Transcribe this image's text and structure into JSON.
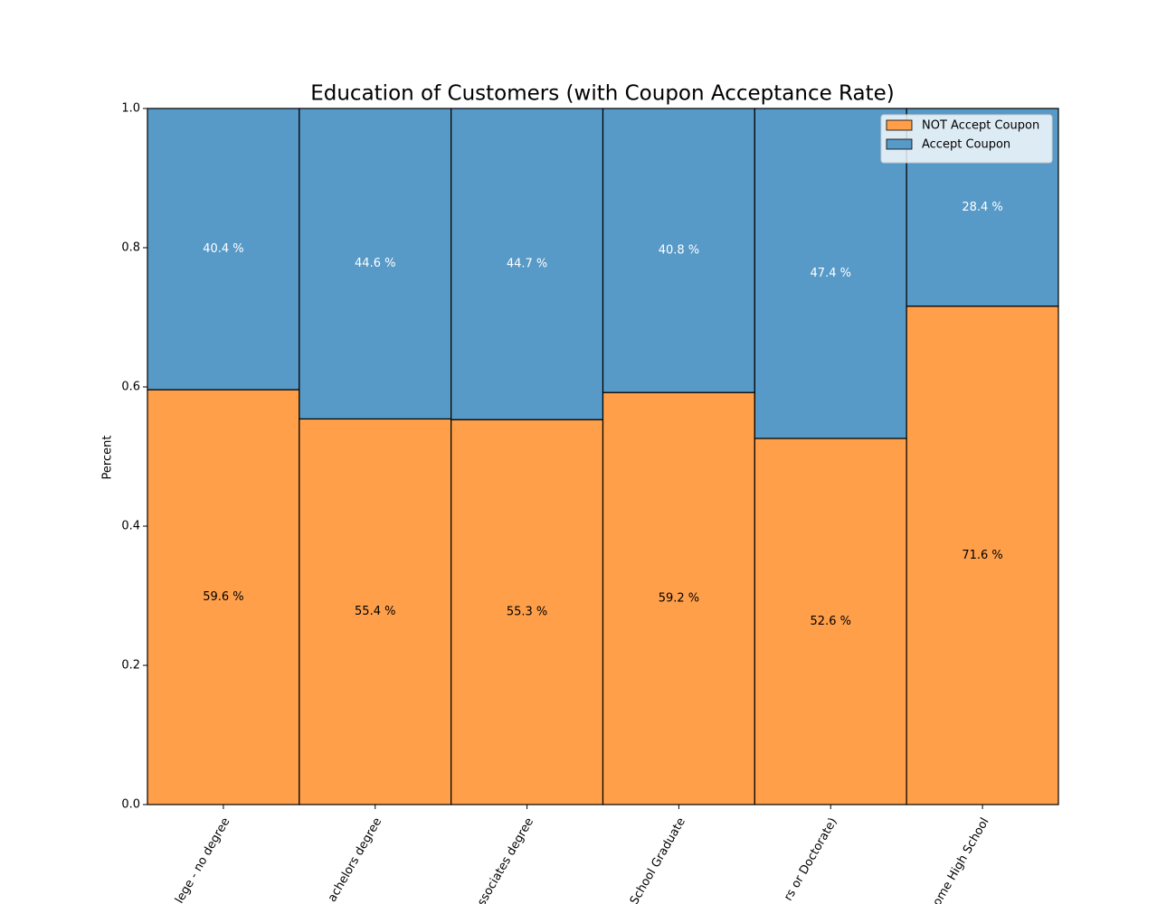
{
  "chart_data": {
    "type": "stacked_bar",
    "title": "Education of Customers (with Coupon Acceptance Rate)",
    "y_label": "Percent",
    "categories": [
      "lege - no degree",
      "achelors degree",
      "ssociates degree",
      "School Graduate",
      "rs or Doctorate)",
      "ome High School"
    ],
    "series": [
      {
        "name": "NOT Accept Coupon",
        "color": "#ff9f4a",
        "label_color": "#000000",
        "values": [
          0.596,
          0.554,
          0.553,
          0.592,
          0.526,
          0.716
        ],
        "value_labels": [
          "59.6 %",
          "55.4 %",
          "55.3 %",
          "59.2 %",
          "52.6 %",
          "71.6 %"
        ]
      },
      {
        "name": "Accept Coupon",
        "color": "#5799c7",
        "label_color": "#ffffff",
        "values": [
          0.404,
          0.446,
          0.447,
          0.408,
          0.474,
          0.284
        ],
        "value_labels": [
          "40.4 %",
          "44.6 %",
          "44.7 %",
          "40.8 %",
          "47.4 %",
          "28.4 %"
        ]
      }
    ],
    "ylim": [
      0,
      1
    ],
    "yticks": [
      {
        "value": 0,
        "label": "0.0"
      },
      0.2,
      0.4,
      0.6,
      0.8,
      {
        "value": 1,
        "label": "1.0"
      }
    ],
    "legend": "upper right"
  }
}
